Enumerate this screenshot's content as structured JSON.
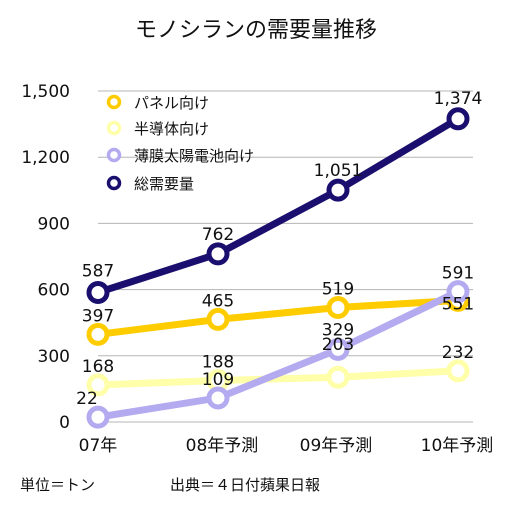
{
  "chart_data": {
    "type": "line",
    "title": "モノシランの需要量推移",
    "x": [
      "07年",
      "08年予測",
      "09年予測",
      "10年予測"
    ],
    "ylim": [
      0,
      1500
    ],
    "yticks": [
      0,
      300,
      600,
      900,
      1200,
      1500
    ],
    "ytick_labels": [
      "0",
      "300",
      "600",
      "900",
      "1,200",
      "1,500"
    ],
    "grid": true,
    "legend_position": "top-left",
    "series": [
      {
        "name": "パネル向け",
        "color": "#ffcc00",
        "values": [
          397,
          465,
          519,
          551
        ],
        "labels": [
          "397",
          "465",
          "519",
          "551"
        ]
      },
      {
        "name": "半導体向け",
        "color": "#ffffaa",
        "values": [
          168,
          188,
          203,
          232
        ],
        "labels": [
          "168",
          "188",
          "203",
          "232"
        ]
      },
      {
        "name": "薄膜太陽電池向け",
        "color": "#b3aaf0",
        "values": [
          22,
          109,
          329,
          591
        ],
        "labels": [
          "22",
          "109",
          "329",
          "591"
        ]
      },
      {
        "name": "総需要量",
        "color": "#1a0f6e",
        "values": [
          587,
          762,
          1051,
          1374
        ],
        "labels": [
          "587",
          "762",
          "1,051",
          "1,374"
        ]
      }
    ]
  },
  "footer": {
    "unit": "単位＝トン",
    "source": "出典＝４日付蘋果日報"
  }
}
